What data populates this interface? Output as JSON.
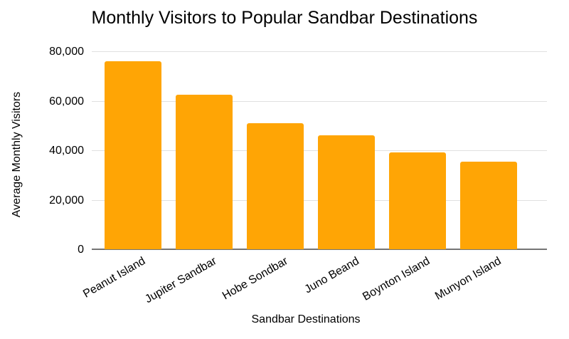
{
  "chart_data": {
    "type": "bar",
    "title": "Monthly Visitors to Popular Sandbar Destinations",
    "xlabel": "Sandbar Destinations",
    "ylabel": "Average Monthly Visitors",
    "categories": [
      "Peanut Island",
      "Jupiter Sandbar",
      "Hobe Sondbar",
      "Juno Beand",
      "Boynton Island",
      "Munyon Island"
    ],
    "values": [
      76000,
      62500,
      51000,
      46000,
      39000,
      35500
    ],
    "ylim": [
      0,
      80000
    ],
    "ytick_values": [
      0,
      20000,
      40000,
      60000,
      80000
    ],
    "ytick_labels": [
      "0",
      "20,000",
      "40,000",
      "60,000",
      "80,000"
    ],
    "grid": true,
    "legend_position": "none",
    "label_rotation_deg": -30,
    "colors": {
      "bar": "#ffa505",
      "gridline": "#e0e0e0",
      "axis_line": "#757575",
      "text": "#000000",
      "background": "#ffffff"
    }
  }
}
